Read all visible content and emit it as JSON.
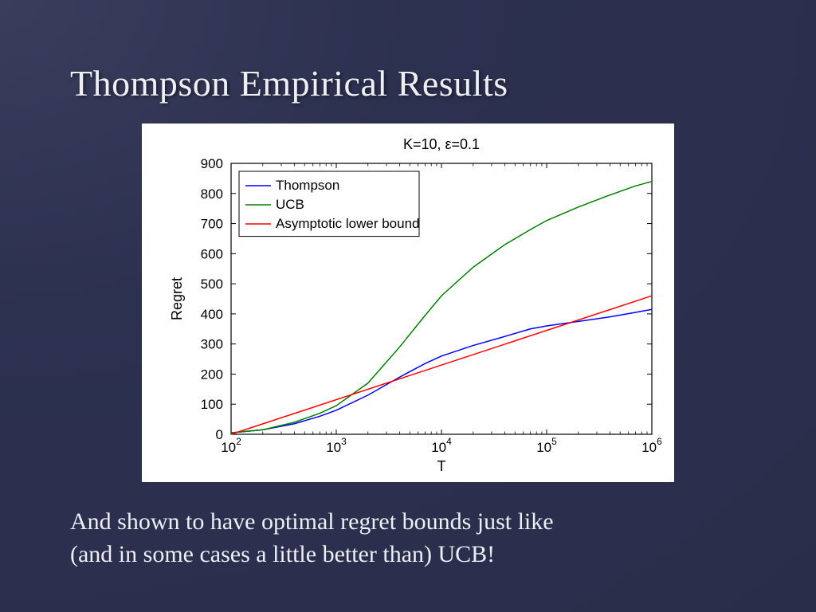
{
  "slide": {
    "title": "Thompson Empirical Results",
    "caption_line1": "And shown to have optimal regret bounds just like",
    "caption_line2": "(and in some cases a little better than) UCB!",
    "background_gradient": [
      "#3a3d5c",
      "#2d3150",
      "#2a2d4a"
    ],
    "title_fontsize": 46,
    "caption_fontsize": 30,
    "title_color": "#eeeef5"
  },
  "chart": {
    "type": "line",
    "title": "K=10, ε=0.1",
    "title_fontsize": 18,
    "xlabel": "T",
    "ylabel": "Regret",
    "label_fontsize": 18,
    "tick_fontsize": 17,
    "background_color": "#ffffff",
    "plot_border_color": "#000000",
    "x_scale": "log",
    "xlim": [
      100,
      1000000
    ],
    "xtick_exponents": [
      2,
      3,
      4,
      5,
      6
    ],
    "ylim": [
      0,
      900
    ],
    "yticks": [
      0,
      100,
      200,
      300,
      400,
      500,
      600,
      700,
      800,
      900
    ],
    "legend_position": "upper-left",
    "legend_border_color": "#000000",
    "line_width": 1.5,
    "series": [
      {
        "name": "Thompson",
        "color": "#0000ff",
        "x": [
          100,
          200,
          400,
          700,
          1000,
          2000,
          4000,
          7000,
          10000,
          20000,
          40000,
          70000,
          100000,
          200000,
          400000,
          700000,
          1000000
        ],
        "y": [
          5,
          15,
          35,
          60,
          80,
          130,
          190,
          235,
          260,
          295,
          325,
          350,
          360,
          375,
          390,
          405,
          415
        ]
      },
      {
        "name": "UCB",
        "color": "#008000",
        "x": [
          100,
          200,
          400,
          700,
          1000,
          2000,
          4000,
          7000,
          10000,
          20000,
          40000,
          70000,
          100000,
          200000,
          400000,
          700000,
          1000000
        ],
        "y": [
          5,
          15,
          40,
          70,
          95,
          170,
          290,
          395,
          460,
          555,
          630,
          680,
          710,
          755,
          795,
          825,
          840
        ]
      },
      {
        "name": "Asymptotic lower bound",
        "color": "#ff0000",
        "x": [
          100,
          1000000
        ],
        "y": [
          0,
          460
        ]
      }
    ]
  }
}
